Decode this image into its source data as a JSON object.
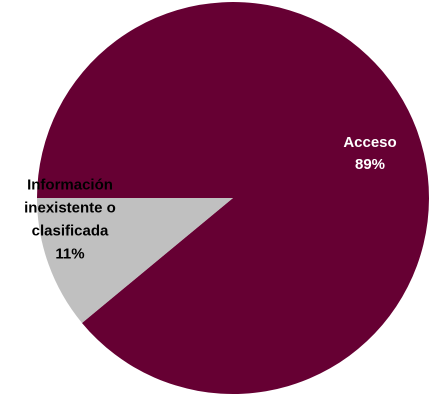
{
  "chart_data": {
    "type": "pie",
    "slices": [
      {
        "label_lines": [
          "Acceso"
        ],
        "value_label": "89%",
        "value": 89,
        "color": "#660033",
        "label_color": "#ffffff"
      },
      {
        "label_lines": [
          "Información",
          "inexistente  o",
          "clasificada"
        ],
        "value_label": "11%",
        "value": 11,
        "color": "#c0c0c0",
        "label_color": "#000000"
      }
    ]
  }
}
